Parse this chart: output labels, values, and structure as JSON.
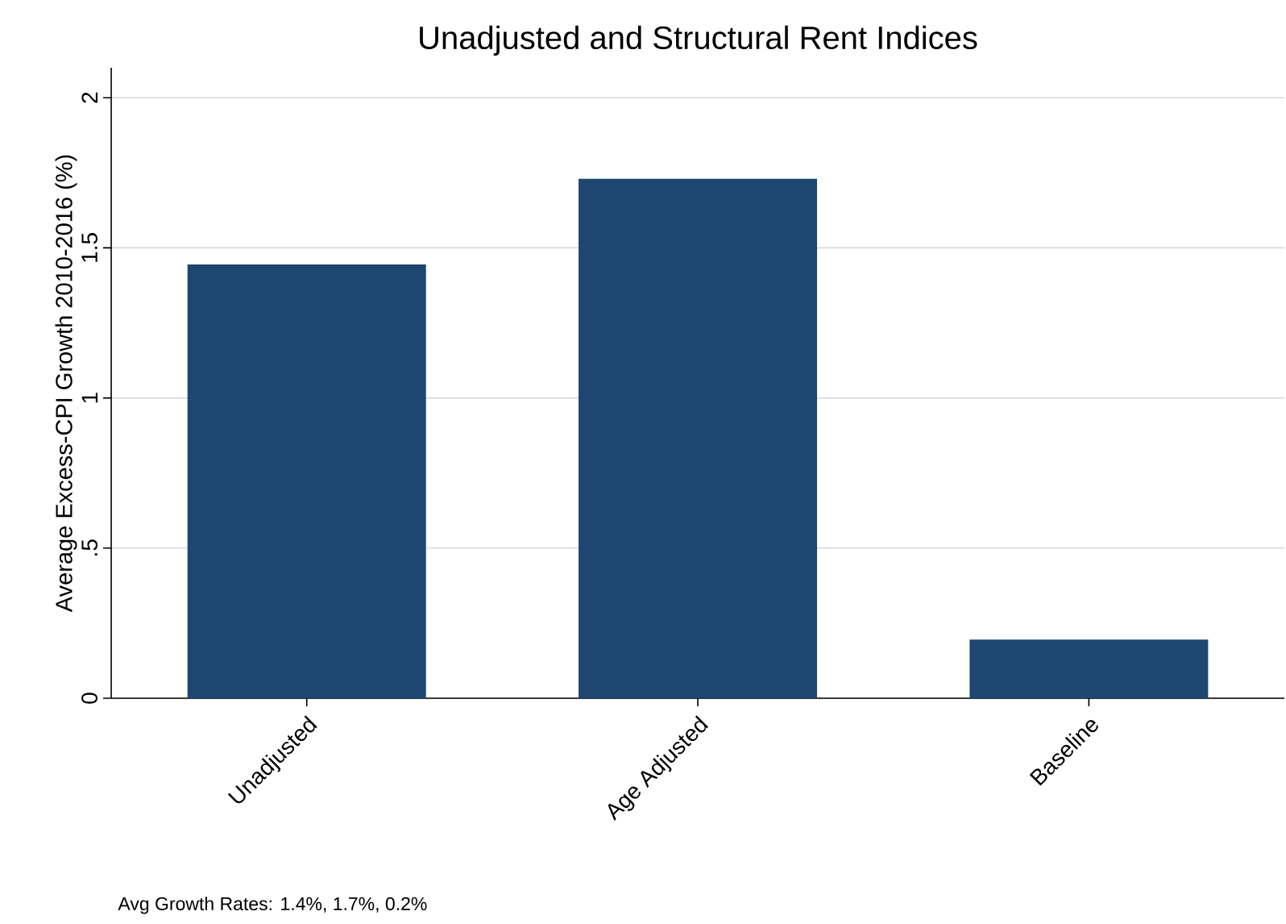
{
  "chart_data": {
    "type": "bar",
    "title": "Unadjusted and Structural Rent Indices",
    "ylabel": "Average Excess-CPI Growth 2010-2016 (%)",
    "categories": [
      "Unadjusted",
      "Age Adjusted",
      "Baseline"
    ],
    "values": [
      1.445,
      1.73,
      0.195
    ],
    "color": "#1d4770",
    "ylim": [
      0,
      2.1
    ],
    "yticks": [
      0,
      {
        "value": 0.5,
        "label": ".5"
      },
      1,
      1.5,
      2
    ],
    "grid": "y",
    "annotations": [
      "Avg Growth Rates:  1.4%,  1.7%,  0.2%"
    ]
  }
}
